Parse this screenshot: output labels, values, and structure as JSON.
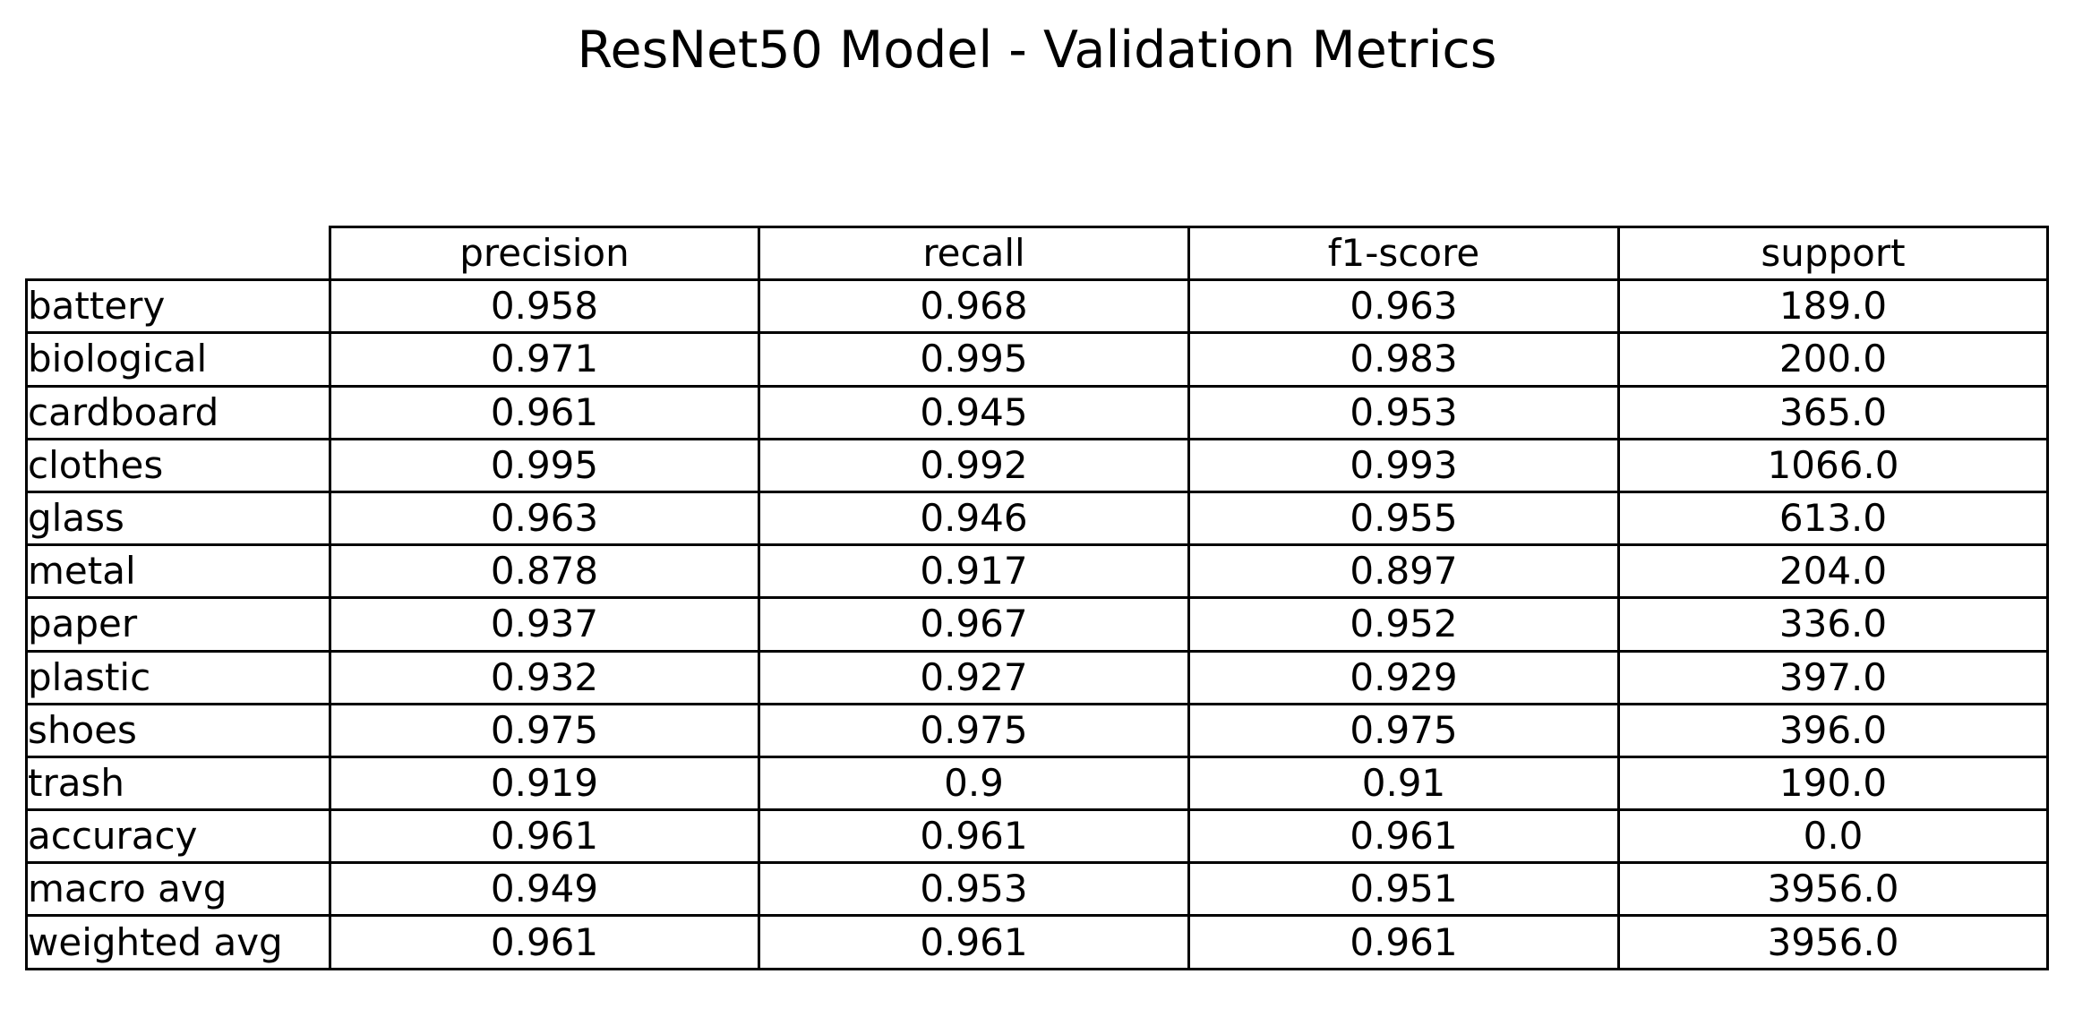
{
  "chart_data": {
    "type": "table",
    "title": "ResNet50 Model - Validation Metrics",
    "columns": [
      "precision",
      "recall",
      "f1-score",
      "support"
    ],
    "rows": [
      {
        "label": "battery",
        "values": [
          "0.958",
          "0.968",
          "0.963",
          "189.0"
        ]
      },
      {
        "label": "biological",
        "values": [
          "0.971",
          "0.995",
          "0.983",
          "200.0"
        ]
      },
      {
        "label": "cardboard",
        "values": [
          "0.961",
          "0.945",
          "0.953",
          "365.0"
        ]
      },
      {
        "label": "clothes",
        "values": [
          "0.995",
          "0.992",
          "0.993",
          "1066.0"
        ]
      },
      {
        "label": "glass",
        "values": [
          "0.963",
          "0.946",
          "0.955",
          "613.0"
        ]
      },
      {
        "label": "metal",
        "values": [
          "0.878",
          "0.917",
          "0.897",
          "204.0"
        ]
      },
      {
        "label": "paper",
        "values": [
          "0.937",
          "0.967",
          "0.952",
          "336.0"
        ]
      },
      {
        "label": "plastic",
        "values": [
          "0.932",
          "0.927",
          "0.929",
          "397.0"
        ]
      },
      {
        "label": "shoes",
        "values": [
          "0.975",
          "0.975",
          "0.975",
          "396.0"
        ]
      },
      {
        "label": "trash",
        "values": [
          "0.919",
          "0.9",
          "0.91",
          "190.0"
        ]
      },
      {
        "label": "accuracy",
        "values": [
          "0.961",
          "0.961",
          "0.961",
          "0.0"
        ]
      },
      {
        "label": "macro avg",
        "values": [
          "0.949",
          "0.953",
          "0.951",
          "3956.0"
        ]
      },
      {
        "label": "weighted avg",
        "values": [
          "0.961",
          "0.961",
          "0.961",
          "3956.0"
        ]
      }
    ]
  }
}
